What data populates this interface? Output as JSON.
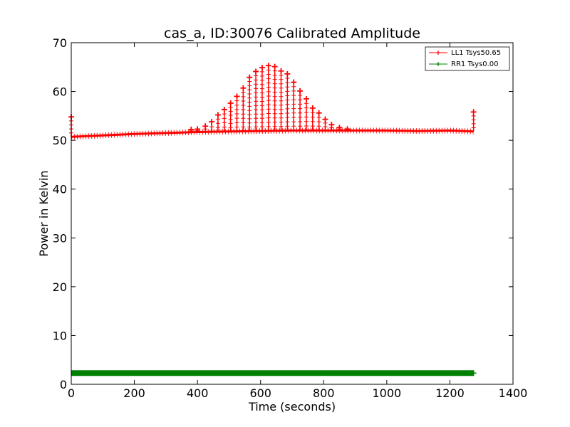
{
  "chart_data": {
    "type": "line",
    "title": "cas_a, ID:30076 Calibrated Amplitude",
    "xlabel": "Time (seconds)",
    "ylabel": "Power in Kelvin",
    "xlim": [
      0,
      1400
    ],
    "ylim": [
      0,
      70
    ],
    "x_ticks": [
      0,
      200,
      400,
      600,
      800,
      1000,
      1200,
      1400
    ],
    "y_ticks": [
      0,
      10,
      20,
      30,
      40,
      50,
      60,
      70
    ],
    "grid": false,
    "legend_position": "top-right",
    "series": [
      {
        "name": "LL1 Tsys50.65",
        "color": "#ff0000",
        "marker": "plus",
        "baseline": [
          [
            0,
            50.7
          ],
          [
            100,
            51.0
          ],
          [
            200,
            51.3
          ],
          [
            300,
            51.5
          ],
          [
            400,
            51.7
          ],
          [
            500,
            51.8
          ],
          [
            600,
            51.9
          ],
          [
            700,
            52.0
          ],
          [
            800,
            52.0
          ],
          [
            900,
            52.0
          ],
          [
            1000,
            52.0
          ],
          [
            1100,
            51.9
          ],
          [
            1200,
            52.0
          ],
          [
            1275,
            51.8
          ]
        ],
        "peaks": [
          [
            0,
            54.8
          ],
          [
            380,
            52.2
          ],
          [
            400,
            52.3
          ],
          [
            425,
            52.9
          ],
          [
            445,
            53.8
          ],
          [
            465,
            55.2
          ],
          [
            485,
            56.3
          ],
          [
            505,
            57.6
          ],
          [
            525,
            59.0
          ],
          [
            545,
            60.7
          ],
          [
            565,
            62.9
          ],
          [
            585,
            64.1
          ],
          [
            605,
            64.9
          ],
          [
            625,
            65.3
          ],
          [
            645,
            65.1
          ],
          [
            665,
            64.2
          ],
          [
            685,
            63.6
          ],
          [
            705,
            61.9
          ],
          [
            725,
            60.1
          ],
          [
            745,
            58.5
          ],
          [
            765,
            56.6
          ],
          [
            785,
            55.6
          ],
          [
            805,
            54.3
          ],
          [
            825,
            53.2
          ],
          [
            850,
            52.6
          ],
          [
            875,
            52.3
          ],
          [
            1275,
            55.8
          ]
        ]
      },
      {
        "name": "RR1 Tsys0.00",
        "color": "#008000",
        "marker": "plus",
        "points": [
          [
            0,
            2.3
          ],
          [
            1275,
            2.3
          ]
        ]
      }
    ]
  }
}
